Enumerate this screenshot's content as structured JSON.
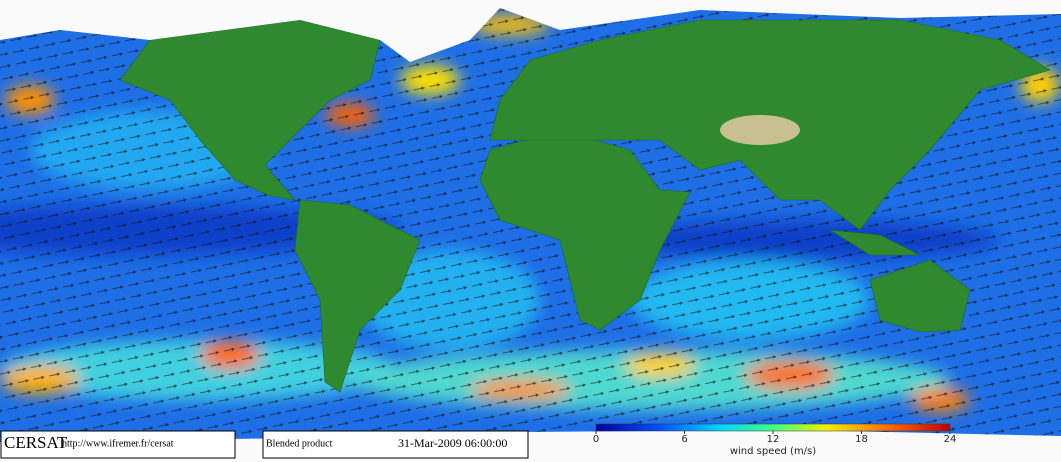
{
  "footer": {
    "logo": "CERSAT",
    "url": "http://www.ifremer.fr/cersat",
    "product": "Blended product",
    "timestamp": "31-Mar-2009 06:00:00"
  },
  "colorbar": {
    "label": "wind speed (m/s)",
    "lim": [
      0,
      24
    ],
    "ticks": [
      0,
      6,
      12,
      18,
      24
    ]
  }
}
